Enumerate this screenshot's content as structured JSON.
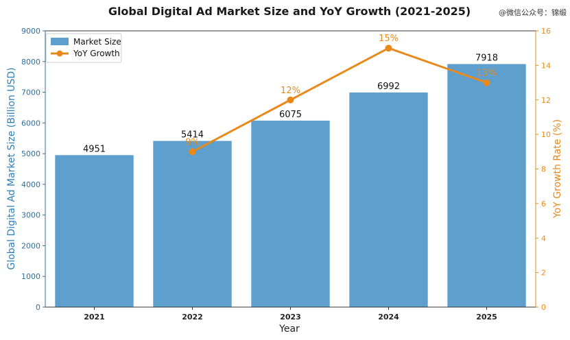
{
  "watermark": "@微信公众号：锦缎",
  "chart_data": {
    "type": "bar",
    "title": "Global Digital Ad Market Size and YoY Growth (2021-2025)",
    "xlabel": "Year",
    "ylabel": "Global Digital Ad Market Size (Billion USD)",
    "y2label": "YoY Growth Rate (%)",
    "categories": [
      "2021",
      "2022",
      "2023",
      "2024",
      "2025"
    ],
    "ylim": [
      0,
      9000
    ],
    "y2lim": [
      0,
      16
    ],
    "yticks": [
      "0",
      "1000",
      "2000",
      "3000",
      "4000",
      "5000",
      "6000",
      "7000",
      "8000",
      "9000"
    ],
    "y2ticks": [
      "0",
      "2",
      "4",
      "6",
      "8",
      "10",
      "12",
      "14",
      "16"
    ],
    "grid": false,
    "legend_position": "top-left",
    "series": [
      {
        "name": "Market Size",
        "type": "bar",
        "axis": "left",
        "color": "#5f9fcd",
        "values": [
          4951,
          5414,
          6075,
          6992,
          7918
        ],
        "labels": [
          "4951",
          "5414",
          "6075",
          "6992",
          "7918"
        ]
      },
      {
        "name": "YoY Growth",
        "type": "line",
        "axis": "right",
        "color": "#e8891c",
        "x": [
          "2022",
          "2023",
          "2024",
          "2025"
        ],
        "values": [
          9,
          12,
          15,
          13
        ],
        "labels": [
          "9%",
          "12%",
          "15%",
          "13%"
        ]
      }
    ]
  }
}
